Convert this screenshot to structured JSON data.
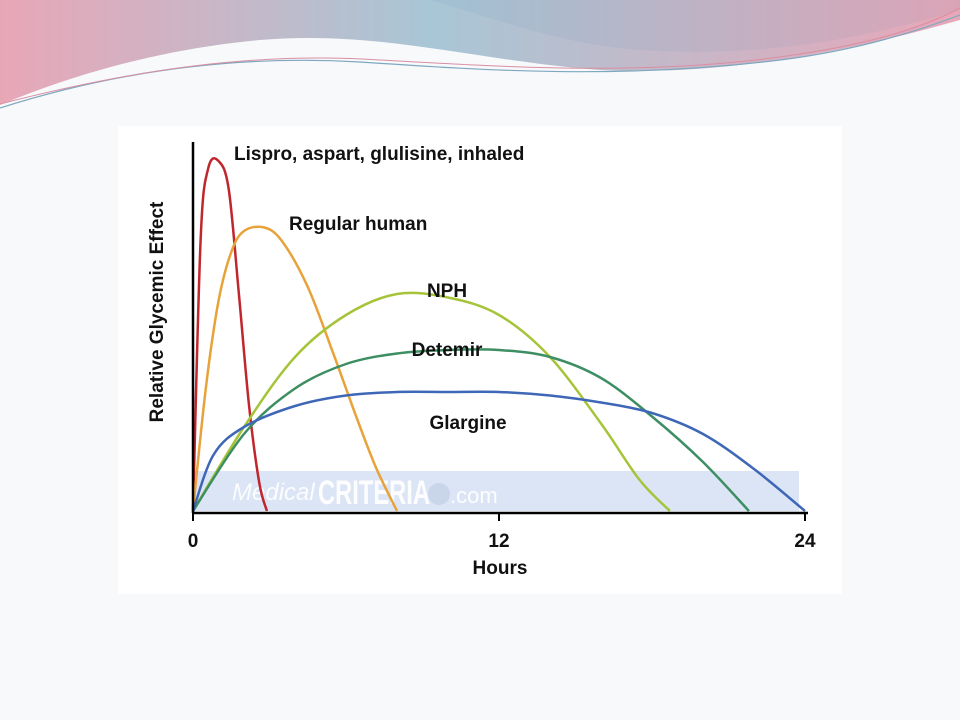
{
  "chart_data": {
    "type": "line",
    "xlabel": "Hours",
    "ylabel": "Relative Glycemic Effect",
    "xlim": [
      0,
      24
    ],
    "ylim": [
      0,
      1
    ],
    "x_ticks": [
      "0",
      "12",
      "24"
    ],
    "grid": false,
    "legend": "inline labels",
    "series": [
      {
        "name": "Lispro, aspart, glulisine, inhaled",
        "color": "#c0272d",
        "x": [
          0,
          0.3,
          0.6,
          1.0,
          1.4,
          1.8,
          2.2,
          2.6,
          2.9
        ],
        "y": [
          0,
          0.78,
          0.98,
          1.0,
          0.92,
          0.62,
          0.3,
          0.08,
          0
        ]
      },
      {
        "name": "Regular human",
        "color": "#e8a23a",
        "x": [
          0,
          0.5,
          1,
          1.5,
          2,
          2.8,
          3.5,
          4.5,
          5.5,
          6.5,
          7.2,
          8.0
        ],
        "y": [
          0,
          0.35,
          0.6,
          0.74,
          0.8,
          0.81,
          0.77,
          0.64,
          0.45,
          0.25,
          0.12,
          0
        ]
      },
      {
        "name": "NPH",
        "color": "#a6c43a",
        "x": [
          0,
          2,
          4,
          6,
          8,
          10,
          12,
          14,
          16,
          17.5,
          18.7
        ],
        "y": [
          0,
          0.24,
          0.44,
          0.56,
          0.62,
          0.61,
          0.56,
          0.44,
          0.25,
          0.09,
          0
        ]
      },
      {
        "name": "Detemir",
        "color": "#3d8f63",
        "x": [
          0,
          2,
          4,
          6,
          8,
          10,
          12,
          14,
          16,
          18,
          20,
          21.8
        ],
        "y": [
          0,
          0.22,
          0.35,
          0.42,
          0.45,
          0.46,
          0.46,
          0.44,
          0.38,
          0.27,
          0.14,
          0
        ]
      },
      {
        "name": "Glargine",
        "color": "#3f67b7",
        "x": [
          0,
          0.8,
          2,
          4,
          6,
          8,
          10,
          12,
          14,
          16,
          18,
          20,
          22,
          24
        ],
        "y": [
          0,
          0.16,
          0.24,
          0.3,
          0.33,
          0.34,
          0.34,
          0.34,
          0.33,
          0.31,
          0.28,
          0.22,
          0.12,
          0
        ]
      }
    ]
  },
  "watermark": {
    "script": "Medical",
    "main": "CRITERIA",
    "suffix": ".com",
    "color": "#b7c8e8"
  },
  "theme": {
    "banner_pink": "#e89aae",
    "banner_blue": "#a9c9dc"
  }
}
